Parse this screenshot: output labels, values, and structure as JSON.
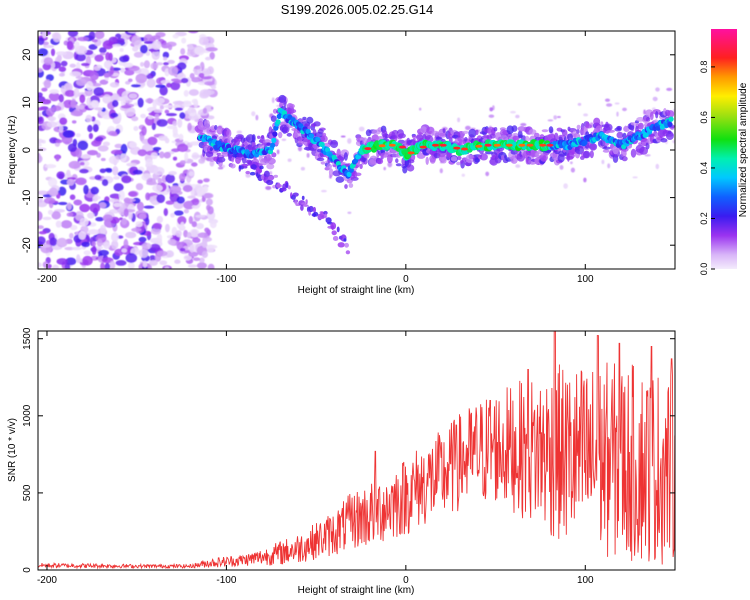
{
  "figure_title": "S199.2026.005.02.25.G14",
  "chart_data": [
    {
      "type": "heatmap",
      "title": "S199.2026.005.02.25.G14",
      "xlabel": "Height of straight line (km)",
      "ylabel": "Frequency (Hz)",
      "xlim": [
        -205,
        150
      ],
      "ylim": [
        -25,
        25
      ],
      "xticks": [
        -200,
        -100,
        0,
        100
      ],
      "xtick_labels": [
        "-200",
        "-100",
        "0",
        "100"
      ],
      "yticks": [
        -20,
        -10,
        0,
        10,
        20
      ],
      "ytick_labels": [
        "-20",
        "-10",
        "0",
        "10",
        "20"
      ],
      "noise_region_km": [
        -205,
        -115
      ],
      "signal_track": {
        "x": [
          -115,
          -105,
          -95,
          -85,
          -75,
          -70,
          -60,
          -50,
          -40,
          -32,
          -25,
          -15,
          -5,
          0,
          10,
          20,
          30,
          40,
          50,
          60,
          70,
          80,
          90,
          100,
          110,
          120,
          130,
          140,
          148
        ],
        "frequency": [
          3,
          1,
          0,
          -1,
          0,
          8,
          5,
          2,
          -2,
          -5,
          0,
          1,
          1,
          -1,
          1,
          1,
          0,
          1,
          1,
          1,
          1,
          1,
          1,
          2,
          3,
          1,
          3,
          5,
          6
        ]
      },
      "strong_segment_km": [
        -25,
        80
      ],
      "secondary_track": {
        "x": [
          -95,
          -85,
          -75,
          -65,
          -55,
          -48,
          -42,
          -36,
          -32
        ],
        "frequency": [
          -2,
          -4,
          -6,
          -9,
          -12,
          -13,
          -15,
          -19,
          -21
        ]
      },
      "colorbar": {
        "label": "Normalized spectral amplitude",
        "range": [
          0.0,
          0.95
        ],
        "ticks": [
          0.0,
          0.2,
          0.4,
          0.6,
          0.8
        ],
        "tick_labels": [
          "0.0",
          "0.2",
          "0.4",
          "0.6",
          "0.8"
        ]
      }
    },
    {
      "type": "line",
      "xlabel": "Height of straight line (km)",
      "ylabel": "SNR (10 * v/v)",
      "xlim": [
        -205,
        150
      ],
      "ylim": [
        0,
        1550
      ],
      "xticks": [
        -200,
        -100,
        0,
        100
      ],
      "xtick_labels": [
        "-200",
        "-100",
        "0",
        "100"
      ],
      "yticks": [
        0,
        500,
        1000,
        1500
      ],
      "ytick_labels": [
        "0",
        "500",
        "1000",
        "1500"
      ],
      "line_color": "#ee3333",
      "envelope": {
        "x": [
          -205,
          -180,
          -150,
          -120,
          -110,
          -100,
          -90,
          -80,
          -70,
          -60,
          -50,
          -40,
          -30,
          -20,
          -10,
          0,
          10,
          20,
          30,
          40,
          50,
          60,
          70,
          80,
          90,
          100,
          110,
          120,
          130,
          140,
          150
        ],
        "mean": [
          30,
          28,
          25,
          25,
          45,
          55,
          65,
          85,
          110,
          140,
          190,
          240,
          320,
          360,
          420,
          480,
          560,
          610,
          700,
          760,
          800,
          790,
          780,
          770,
          740,
          720,
          720,
          700,
          690,
          670,
          650
        ],
        "amplitude": [
          15,
          15,
          12,
          12,
          30,
          35,
          40,
          55,
          80,
          100,
          120,
          150,
          190,
          220,
          240,
          260,
          280,
          300,
          320,
          350,
          380,
          420,
          480,
          560,
          600,
          620,
          640,
          650,
          650,
          640,
          620
        ]
      },
      "peaks": [
        {
          "x": 83,
          "y": 1550
        },
        {
          "x": 107,
          "y": 1520
        },
        {
          "x": 119,
          "y": 1470
        },
        {
          "x": 137,
          "y": 1450
        },
        {
          "x": 148,
          "y": 1370
        },
        {
          "x": 68,
          "y": 1300
        },
        {
          "x": 47,
          "y": 1100
        },
        {
          "x": 28,
          "y": 940
        },
        {
          "x": -17,
          "y": 770
        }
      ]
    }
  ]
}
